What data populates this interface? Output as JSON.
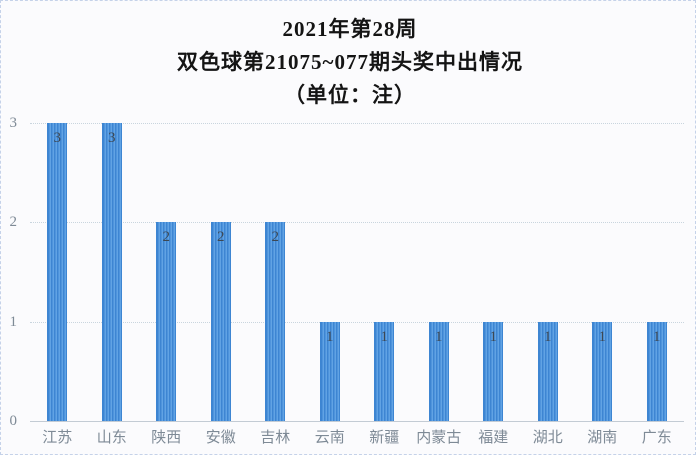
{
  "title": {
    "line1": "2021年第28周",
    "line2": "双色球第21075~077期头奖中出情况",
    "line3": "（单位：注）"
  },
  "chart_data": {
    "type": "bar",
    "title": "2021年第28周双色球第21075~077期头奖中出情况（单位：注）",
    "categories": [
      "江苏",
      "山东",
      "陕西",
      "安徽",
      "吉林",
      "云南",
      "新疆",
      "内蒙古",
      "福建",
      "湖北",
      "湖南",
      "广东"
    ],
    "values": [
      3,
      3,
      2,
      2,
      2,
      1,
      1,
      1,
      1,
      1,
      1,
      1
    ],
    "xlabel": "",
    "ylabel": "单位：注",
    "ylim": [
      0,
      3
    ],
    "yticks": [
      0,
      1,
      2,
      3
    ],
    "grid": "horizontal-dotted",
    "legend": "none",
    "show_value_labels": true,
    "colors": {
      "bar_main": "#4f94dc",
      "bar_stripe_dark": "#3d85d2",
      "bar_stripe_light": "#61a3e4",
      "value_label": "#3d4854",
      "axis_label": "#7e8a96",
      "gridline": "#c9d5de",
      "axis_line": "#c3cbd4",
      "title_text": "#141414",
      "frame_border": "#c5d2e9",
      "background": "#fbfbfd"
    }
  }
}
